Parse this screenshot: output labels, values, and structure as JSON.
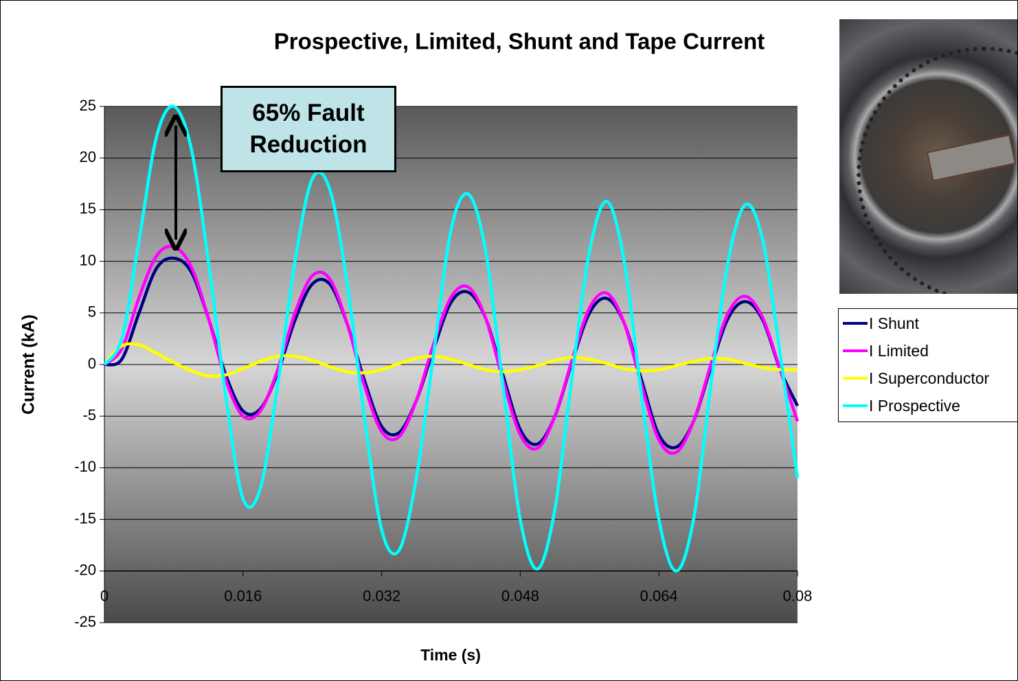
{
  "chart_data": {
    "type": "line",
    "title": "Prospective, Limited, Shunt and Tape Current",
    "x_label": "Time (s)",
    "y_label": "Current (kA)",
    "annotation": "65% Fault Reduction",
    "x": [
      0,
      0.002,
      0.004,
      0.006,
      0.008,
      0.01,
      0.012,
      0.014,
      0.016,
      0.018,
      0.02,
      0.022,
      0.024,
      0.026,
      0.028,
      0.03,
      0.032,
      0.034,
      0.036,
      0.038,
      0.04,
      0.042,
      0.044,
      0.046,
      0.048,
      0.05,
      0.052,
      0.054,
      0.056,
      0.058,
      0.06,
      0.062,
      0.064,
      0.066,
      0.068,
      0.07,
      0.072,
      0.074,
      0.076,
      0.078,
      0.08
    ],
    "series": [
      {
        "name": "I Shunt",
        "color": "#000080",
        "values": [
          0,
          0.5,
          5,
          9.3,
          10.3,
          9,
          4.5,
          -1,
          -4.5,
          -4.3,
          -0.8,
          4.3,
          7.8,
          7.8,
          4,
          -1.5,
          -6,
          -6.6,
          -3.5,
          1.5,
          6,
          7,
          4.5,
          -1,
          -6.3,
          -7.7,
          -5,
          0.3,
          5,
          6.4,
          4,
          -1.5,
          -6.8,
          -8,
          -5.5,
          -0.3,
          4.5,
          6.1,
          4.3,
          -0.5,
          -4
        ]
      },
      {
        "name": "I Limited",
        "color": "#ff00ff",
        "values": [
          0,
          1.5,
          6.5,
          10.5,
          11.4,
          9.5,
          4.5,
          -1.5,
          -5,
          -4.5,
          -0.5,
          5,
          8.6,
          8.3,
          4,
          -2,
          -6.5,
          -7,
          -3.5,
          2,
          6.5,
          7.5,
          4.5,
          -1.5,
          -6.8,
          -8.1,
          -5,
          0.5,
          5.5,
          6.9,
          4,
          -2,
          -7.3,
          -8.5,
          -5.5,
          0,
          5,
          6.6,
          4.5,
          -0.5,
          -5.5
        ]
      },
      {
        "name": "I Superconductor",
        "color": "#ffff00",
        "values": [
          0,
          1.8,
          1.9,
          1.1,
          0.2,
          -0.6,
          -1.1,
          -1,
          -0.4,
          0.3,
          0.8,
          0.8,
          0.4,
          -0.2,
          -0.7,
          -0.8,
          -0.5,
          0.1,
          0.6,
          0.8,
          0.5,
          0,
          -0.5,
          -0.7,
          -0.5,
          -0.1,
          0.4,
          0.7,
          0.5,
          0.1,
          -0.4,
          -0.6,
          -0.5,
          -0.1,
          0.3,
          0.6,
          0.5,
          0.1,
          -0.3,
          -0.5,
          -0.5
        ]
      },
      {
        "name": "I Prospective",
        "color": "#00ffff",
        "values": [
          0,
          2.5,
          12,
          22,
          25,
          21,
          10,
          -3,
          -13,
          -12,
          -2,
          10,
          18,
          17,
          8,
          -5,
          -16,
          -18,
          -11,
          1,
          13,
          16.5,
          11,
          -2,
          -15,
          -19.8,
          -14,
          -1,
          11,
          15.8,
          10,
          -3,
          -15,
          -20,
          -15,
          -2,
          10,
          15.5,
          12,
          1,
          -11
        ]
      }
    ],
    "xlim": [
      0,
      0.08
    ],
    "xticks": [
      0,
      0.016,
      0.032,
      0.048,
      0.064,
      0.08
    ],
    "ylim": [
      -25,
      25
    ],
    "yticks": [
      -25,
      -20,
      -15,
      -10,
      -5,
      0,
      5,
      10,
      15,
      20,
      25
    ],
    "x_axis_crosses": -20,
    "grid": true
  }
}
